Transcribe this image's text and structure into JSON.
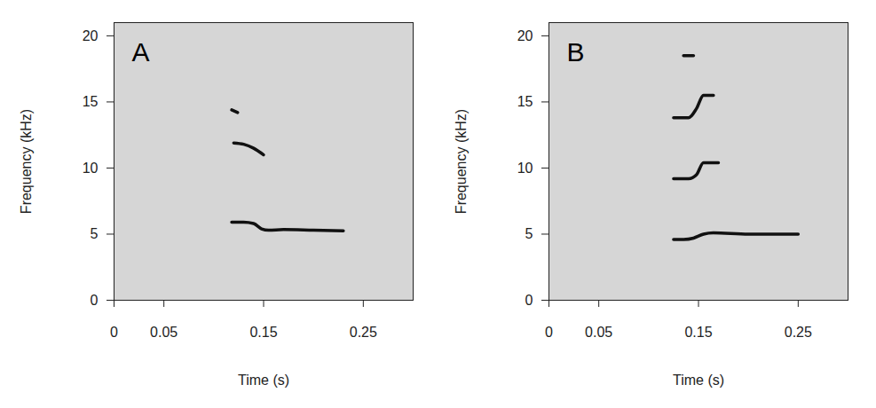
{
  "chart_data": [
    {
      "type": "line",
      "title": "A",
      "x_label": "Time (s)",
      "y_label": "Frequency (kHz)",
      "xlim": [
        0,
        0.3
      ],
      "ylim": [
        0,
        21
      ],
      "xticks": [
        0,
        0.05,
        0.15,
        0.25
      ],
      "yticks": [
        0,
        5,
        10,
        15,
        20
      ],
      "color": "#111111",
      "series": [
        {
          "x": [
            0.118,
            0.13,
            0.14,
            0.148,
            0.155,
            0.17,
            0.2,
            0.23
          ],
          "values": [
            5.9,
            5.9,
            5.8,
            5.4,
            5.3,
            5.35,
            5.3,
            5.25
          ]
        },
        {
          "x": [
            0.12,
            0.13,
            0.14,
            0.15
          ],
          "values": [
            11.9,
            11.8,
            11.5,
            11.0
          ]
        },
        {
          "x": [
            0.118,
            0.124
          ],
          "values": [
            14.4,
            14.2
          ]
        }
      ]
    },
    {
      "type": "line",
      "title": "B",
      "x_label": "Time (s)",
      "y_label": "Frequency (kHz)",
      "xlim": [
        0,
        0.3
      ],
      "ylim": [
        0,
        21
      ],
      "xticks": [
        0,
        0.05,
        0.15,
        0.25
      ],
      "yticks": [
        0,
        5,
        10,
        15,
        20
      ],
      "color": "#111111",
      "series": [
        {
          "x": [
            0.125,
            0.135,
            0.145,
            0.155,
            0.165,
            0.2,
            0.25
          ],
          "values": [
            4.6,
            4.6,
            4.7,
            5.0,
            5.1,
            5.0,
            5.0
          ]
        },
        {
          "x": [
            0.125,
            0.14,
            0.148,
            0.155,
            0.17
          ],
          "values": [
            9.2,
            9.2,
            9.5,
            10.4,
            10.4
          ]
        },
        {
          "x": [
            0.125,
            0.14,
            0.148,
            0.155,
            0.165
          ],
          "values": [
            13.8,
            13.8,
            14.5,
            15.5,
            15.5
          ]
        },
        {
          "x": [
            0.135,
            0.145
          ],
          "values": [
            18.5,
            18.5
          ]
        }
      ]
    }
  ]
}
